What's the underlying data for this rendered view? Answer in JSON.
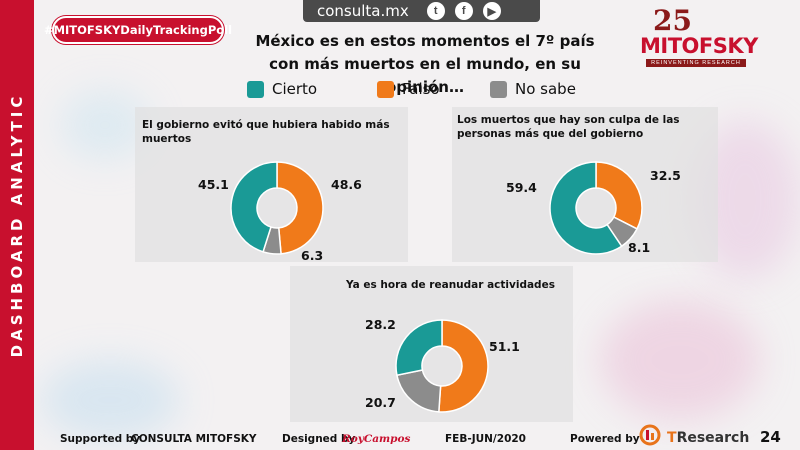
{
  "sidebar": {
    "label": "DASHBOARD ANALYTIC"
  },
  "header": {
    "hashtag": "#MITOFSKYDailyTrackingPoll",
    "site": "consulta.mx",
    "social_icons": [
      "twitter-icon",
      "facebook-icon",
      "youtube-icon"
    ],
    "logo": {
      "number": "25",
      "brand": "MITOFSKY",
      "tagline": "REINVENTING RESEARCH"
    },
    "title_line1": "México es en estos momentos el 7º país",
    "title_line2": "con más muertos en el mundo, en su opinión…"
  },
  "legend": [
    {
      "label": "Cierto",
      "color": "#1a9a96"
    },
    {
      "label": "Falso",
      "color": "#f07a1a"
    },
    {
      "label": "No sabe",
      "color": "#8c8c8c"
    }
  ],
  "chart_data": [
    {
      "type": "pie",
      "title": "El gobierno evitó que hubiera habido más muertos",
      "categories": [
        "Cierto",
        "Falso",
        "No sabe"
      ],
      "values": [
        45.1,
        48.6,
        6.3
      ]
    },
    {
      "type": "pie",
      "title": "Los muertos que hay son culpa de las personas más que del gobierno",
      "categories": [
        "Cierto",
        "Falso",
        "No sabe"
      ],
      "values": [
        59.4,
        32.5,
        8.1
      ]
    },
    {
      "type": "pie",
      "title": "Ya es hora de reanudar actividades",
      "categories": [
        "Cierto",
        "Falso",
        "No sabe"
      ],
      "values": [
        28.2,
        51.1,
        20.7
      ]
    }
  ],
  "footer": {
    "supported_by": "Supported by",
    "consulta": "CONSULTA MITOFSKY",
    "designed_by": "Designed by",
    "designer": "RoyCampos",
    "period": "FEB-JUN/2020",
    "powered_by": "Powered by",
    "tresearch": "TResearch",
    "page": "24"
  }
}
